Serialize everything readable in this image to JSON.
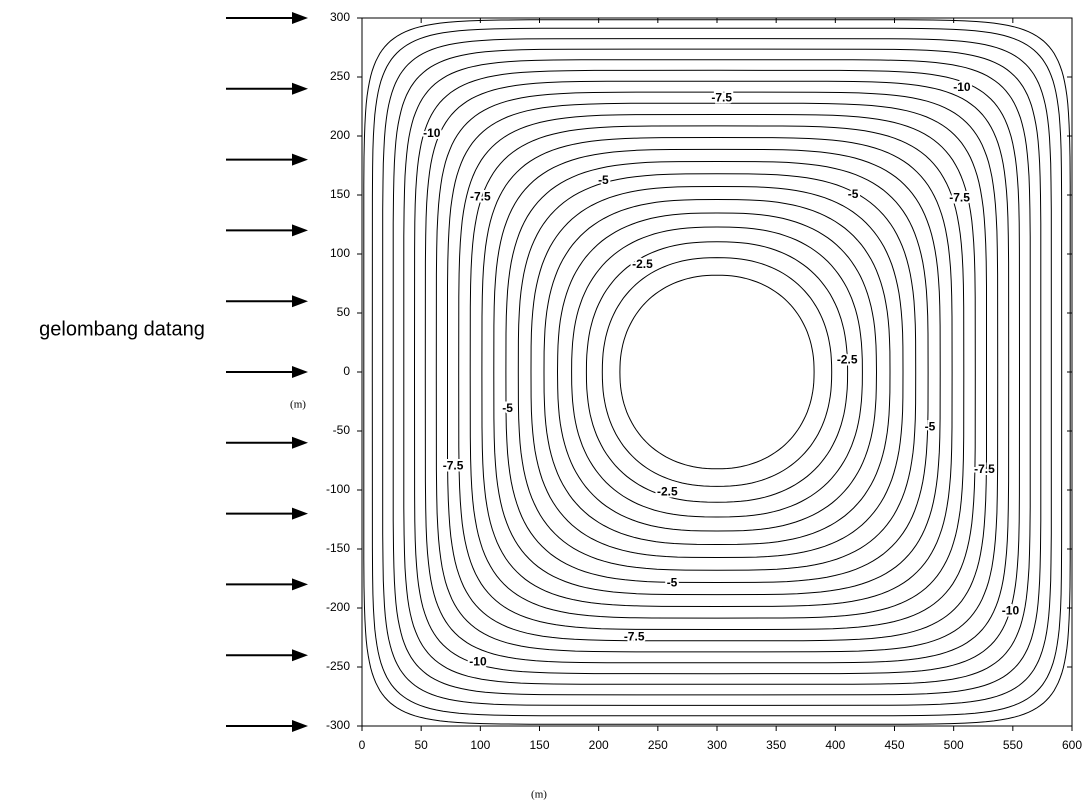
{
  "chart_data": {
    "type": "contour",
    "annotation": "gelombang datang",
    "xlabel": "(m)",
    "ylabel": "(m)",
    "xlim": [
      0,
      600
    ],
    "ylim": [
      -300,
      300
    ],
    "xticks": [
      0,
      50,
      100,
      150,
      200,
      250,
      300,
      350,
      400,
      450,
      500,
      550,
      600
    ],
    "yticks": [
      300,
      250,
      200,
      150,
      100,
      50,
      0,
      -50,
      -100,
      -150,
      -200,
      -250,
      -300
    ],
    "color": "#000000",
    "levels": [
      -0.5,
      -1,
      -1.5,
      -2,
      -2.5,
      -3,
      -3.5,
      -4,
      -4.5,
      -5,
      -5.5,
      -6,
      -6.5,
      -7,
      -7.5,
      -8,
      -8.5,
      -9,
      -9.5,
      -10,
      -10.5,
      -11
    ],
    "contour_labels": {
      "values": [
        -7.5,
        -10,
        -10,
        -5,
        -5,
        -7.5,
        -7.5,
        -2.5,
        -2.5,
        -5,
        -5,
        -7.5,
        -7.5,
        -2.5,
        -5,
        -10,
        -7.5,
        -10
      ],
      "x": [
        304,
        507,
        59,
        204,
        415,
        100,
        505,
        237,
        410,
        123,
        480,
        77,
        526,
        258,
        262,
        548,
        230,
        98
      ],
      "y": [
        232,
        241,
        202,
        162,
        150,
        148,
        147,
        91,
        10,
        -31,
        -47,
        -80,
        -83,
        -102,
        -179,
        -203,
        -225,
        -246
      ]
    }
  }
}
